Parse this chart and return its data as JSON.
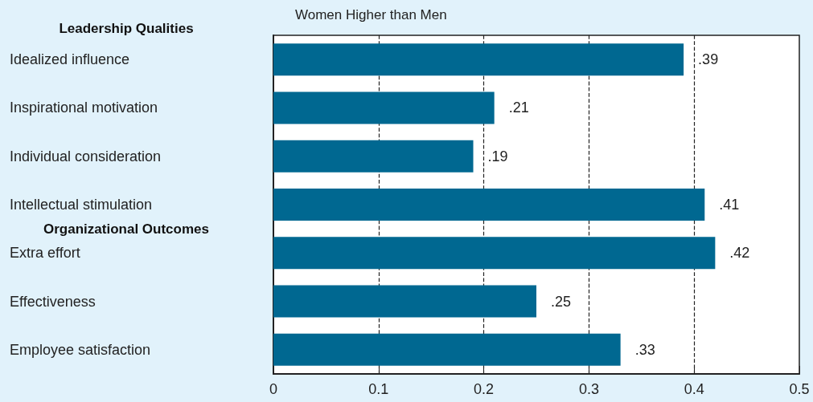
{
  "chart_data": {
    "type": "bar",
    "orientation": "horizontal",
    "xlabel": "Women Higher than Men",
    "categories": [
      "Idealized influence",
      "Inspirational motivation",
      "Individual consideration",
      "Intellectual stimulation",
      "Extra effort",
      "Effectiveness",
      "Employee satisfaction"
    ],
    "values": [
      0.39,
      0.21,
      0.19,
      0.41,
      0.42,
      0.25,
      0.33
    ],
    "value_labels": [
      ".39",
      ".21",
      ".19",
      ".41",
      ".42",
      ".25",
      ".33"
    ],
    "color": "#006891",
    "xlim": [
      0,
      0.5
    ],
    "xticks": [
      0,
      0.1,
      0.2,
      0.3,
      0.4,
      0.5
    ],
    "grid": "x",
    "line_style": "dashed",
    "annotations": [
      "Leadership Qualities",
      "Organizational Outcomes"
    ]
  }
}
